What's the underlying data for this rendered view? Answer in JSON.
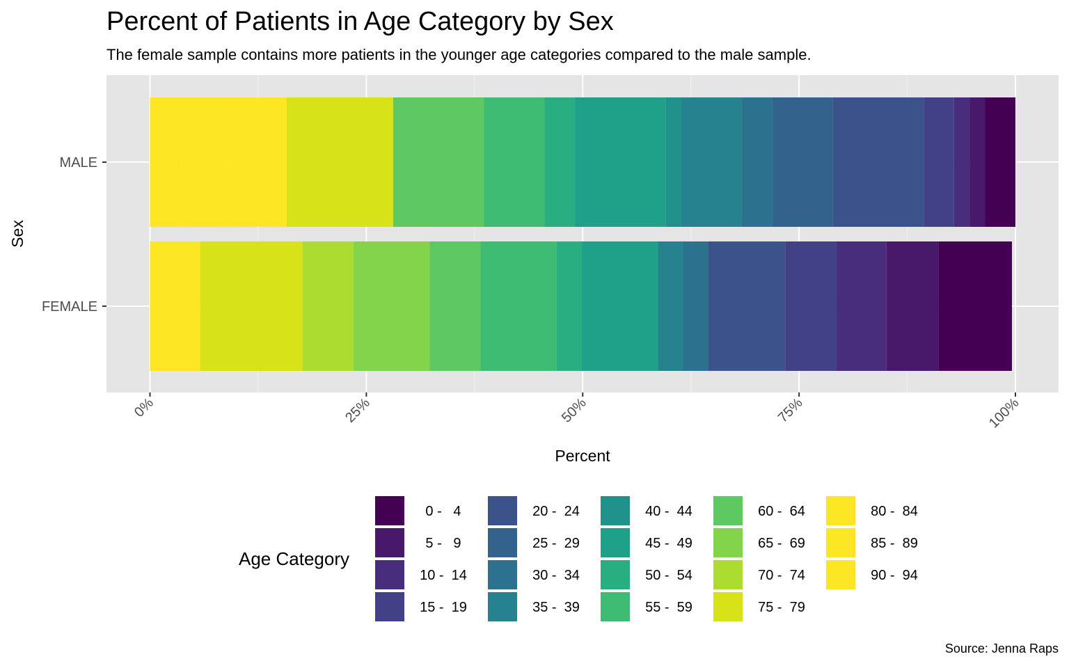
{
  "title": "Percent of Patients in Age Category by Sex",
  "subtitle": "The female sample contains more patients in the younger age categories compared to the male sample.",
  "caption": "Source: Jenna Raps",
  "legend": {
    "title": "Age Category",
    "items": [
      {
        "label": "0 -   4",
        "color": "#440154"
      },
      {
        "label": "5 -   9",
        "color": "#48186a"
      },
      {
        "label": "10 -  14",
        "color": "#472d7b"
      },
      {
        "label": "15 -  19",
        "color": "#424086"
      },
      {
        "label": "20 -  24",
        "color": "#3b528b"
      },
      {
        "label": "25 -  29",
        "color": "#33638d"
      },
      {
        "label": "30 -  34",
        "color": "#2c728e"
      },
      {
        "label": "35 -  39",
        "color": "#26828e"
      },
      {
        "label": "40 -  44",
        "color": "#21918c"
      },
      {
        "label": "45 -  49",
        "color": "#1fa088"
      },
      {
        "label": "50 -  54",
        "color": "#28ae80"
      },
      {
        "label": "55 -  59",
        "color": "#3fbc73"
      },
      {
        "label": "60 -  64",
        "color": "#5ec962"
      },
      {
        "label": "65 -  69",
        "color": "#84d44b"
      },
      {
        "label": "70 -  74",
        "color": "#addc30"
      },
      {
        "label": "75 -  79",
        "color": "#d8e219"
      },
      {
        "label": "80 -  84",
        "color": "#fde725"
      },
      {
        "label": "85 -  89",
        "color": "#fde725"
      },
      {
        "label": "90 -  94",
        "color": "#fde725"
      }
    ]
  },
  "chart_data": {
    "type": "bar",
    "orientation": "horizontal",
    "stacked": true,
    "xlabel": "Percent",
    "ylabel": "Sex",
    "xlim": [
      0,
      100
    ],
    "xticks": [
      0,
      25,
      50,
      75,
      100
    ],
    "xtick_labels": [
      "0%",
      "25%",
      "50%",
      "75%",
      "100%"
    ],
    "categories": [
      "MALE",
      "FEMALE"
    ],
    "grid": true,
    "legend_position": "bottom",
    "segment_order_left_to_right": [
      "90 -  94",
      "85 -  89",
      "80 -  84",
      "75 -  79",
      "70 -  74",
      "65 -  69",
      "60 -  64",
      "55 -  59",
      "50 -  54",
      "45 -  49",
      "40 -  44",
      "35 -  39",
      "30 -  34",
      "25 -  29",
      "20 -  24",
      "15 -  19",
      "10 -  14",
      "5 -   9",
      "0 -   4"
    ],
    "series": [
      {
        "name": "0 -   4",
        "values": [
          3.5,
          8.5
        ]
      },
      {
        "name": "5 -   9",
        "values": [
          1.8,
          6.0
        ]
      },
      {
        "name": "10 -  14",
        "values": [
          1.8,
          5.8
        ]
      },
      {
        "name": "15 -  19",
        "values": [
          3.5,
          5.9
        ]
      },
      {
        "name": "20 -  24",
        "values": [
          10.5,
          8.9
        ]
      },
      {
        "name": "25 -  29",
        "values": [
          7.0,
          0
        ]
      },
      {
        "name": "30 -  34",
        "values": [
          3.5,
          2.9
        ]
      },
      {
        "name": "35 -  39",
        "values": [
          7.0,
          2.9
        ]
      },
      {
        "name": "40 -  44",
        "values": [
          1.8,
          0
        ]
      },
      {
        "name": "45 -  49",
        "values": [
          10.5,
          8.8
        ]
      },
      {
        "name": "50 -  54",
        "values": [
          3.5,
          2.9
        ]
      },
      {
        "name": "55 -  59",
        "values": [
          7.0,
          8.8
        ]
      },
      {
        "name": "60 -  64",
        "values": [
          10.5,
          5.9
        ]
      },
      {
        "name": "65 -  69",
        "values": [
          0,
          8.8
        ]
      },
      {
        "name": "70 -  74",
        "values": [
          0,
          5.9
        ]
      },
      {
        "name": "75 -  79",
        "values": [
          12.3,
          11.8
        ]
      },
      {
        "name": "80 -  84",
        "values": [
          7.0,
          0
        ]
      },
      {
        "name": "85 -  89",
        "values": [
          5.3,
          2.9
        ]
      },
      {
        "name": "90 -  94",
        "values": [
          3.5,
          2.9
        ]
      }
    ]
  }
}
